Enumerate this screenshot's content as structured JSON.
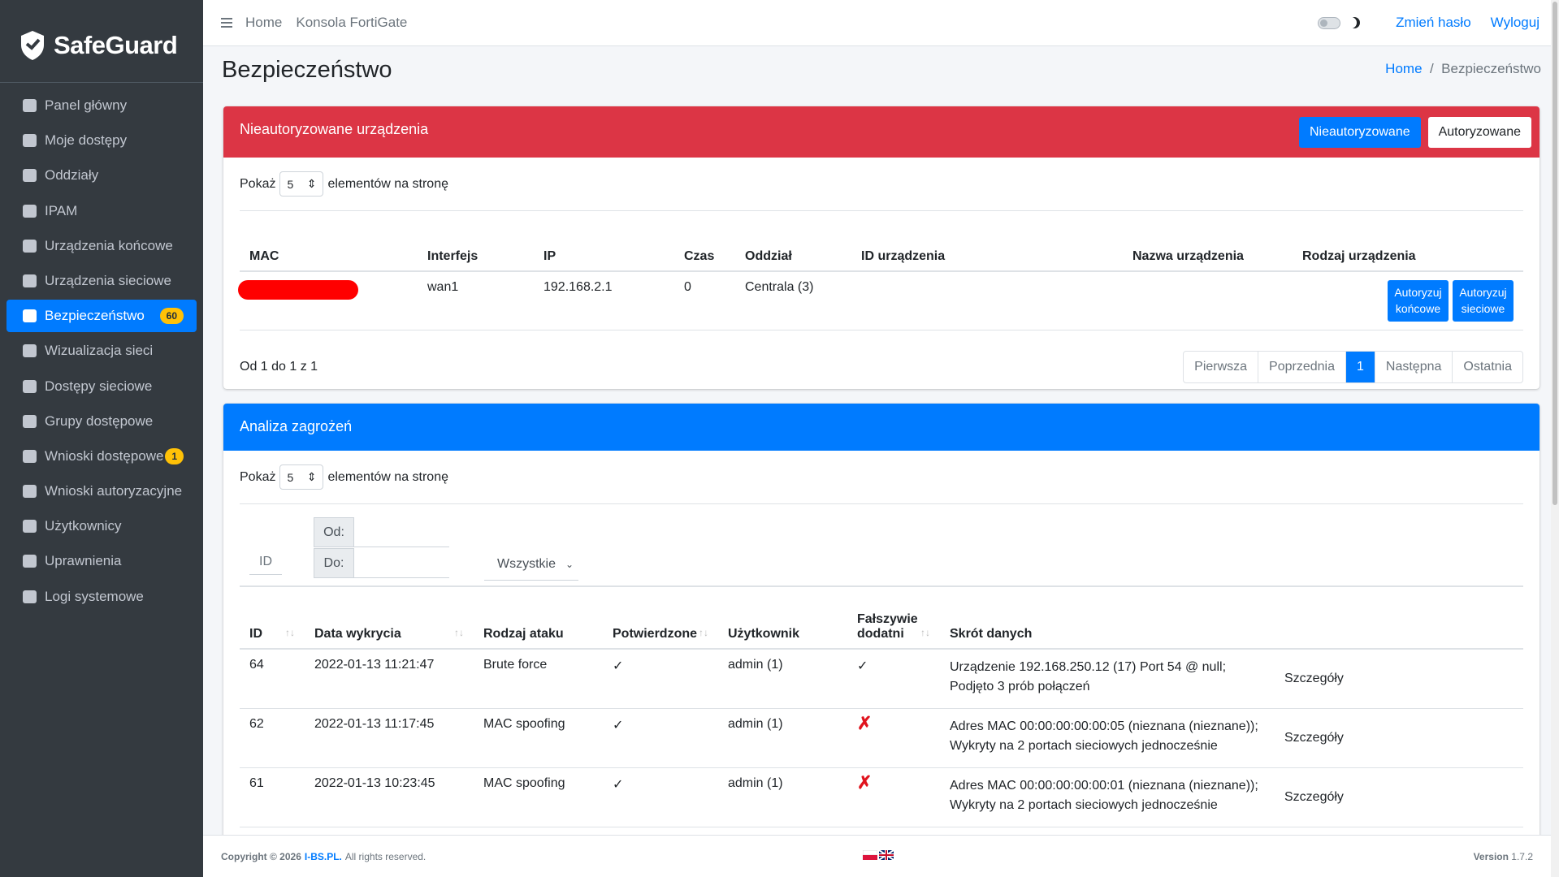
{
  "brand": "SafeGuard",
  "sidebar": {
    "items": [
      {
        "label": "Panel główny"
      },
      {
        "label": "Moje dostępy"
      },
      {
        "label": "Oddziały"
      },
      {
        "label": "IPAM"
      },
      {
        "label": "Urządzenia końcowe"
      },
      {
        "label": "Urządzenia sieciowe"
      },
      {
        "label": "Bezpieczeństwo",
        "badge": "60",
        "active": true
      },
      {
        "label": "Wizualizacja sieci"
      },
      {
        "label": "Dostępy sieciowe"
      },
      {
        "label": "Grupy dostępowe"
      },
      {
        "label": "Wnioski dostępowe",
        "badge": "1"
      },
      {
        "label": "Wnioski autoryzacyjne"
      },
      {
        "label": "Użytkownicy"
      },
      {
        "label": "Uprawnienia"
      },
      {
        "label": "Logi systemowe"
      }
    ]
  },
  "topbar": {
    "links": [
      "Home",
      "Konsola FortiGate"
    ],
    "change_password": "Zmień hasło",
    "logout": "Wyloguj"
  },
  "page": {
    "title": "Bezpieczeństwo",
    "breadcrumb": [
      "Home",
      "Bezpieczeństwo"
    ]
  },
  "unauthorized": {
    "title": "Nieautoryzowane urządzenia",
    "tabs": [
      "Nieautoryzowane",
      "Autoryzowane"
    ],
    "show": "Pokaż",
    "page_size": "5",
    "per_page": "elementów na stronę",
    "columns": [
      "MAC",
      "Interfejs",
      "IP",
      "Czas",
      "Oddział",
      "ID urządzenia",
      "Nazwa urządzenia",
      "Rodzaj urządzenia"
    ],
    "rows": [
      {
        "interface": "wan1",
        "ip": "192.168.2.1",
        "time": "0",
        "branch": "Centrala (3)",
        "actions": [
          "Autoryzuj końcowe",
          "Autoryzuj sieciowe"
        ]
      }
    ],
    "summary": "Od 1 do 1 z 1",
    "pagination": [
      "Pierwsza",
      "Poprzednia",
      "1",
      "Następna",
      "Ostatnia"
    ]
  },
  "threats": {
    "title": "Analiza zagrożeń",
    "show": "Pokaż",
    "page_size": "5",
    "per_page": "elementów na stronę",
    "filters": {
      "id": "ID",
      "from": "Od:",
      "to": "Do:",
      "select": "Wszystkie"
    },
    "columns": [
      "ID",
      "Data wykrycia",
      "Rodzaj ataku",
      "Potwierdzone",
      "Użytkownik",
      "Fałszywie dodatni",
      "Skrót danych"
    ],
    "rows": [
      {
        "id": "64",
        "date": "2022-01-13 11:21:47",
        "type": "Brute force",
        "confirmed": "✓",
        "user": "admin (1)",
        "false_positive": "✓",
        "summary": "Urządzenie 192.168.250.12 (17) Port 54 @ null; Podjęto 3 prób połączeń",
        "details": "Szczegóły"
      },
      {
        "id": "62",
        "date": "2022-01-13 11:17:45",
        "type": "MAC spoofing",
        "confirmed": "✓",
        "user": "admin (1)",
        "false_positive": "✗",
        "summary": "Adres MAC 00:00:00:00:00:05 (nieznana (nieznane)); Wykryty na 2 portach sieciowych jednocześnie",
        "details": "Szczegóły"
      },
      {
        "id": "61",
        "date": "2022-01-13 10:23:45",
        "type": "MAC spoofing",
        "confirmed": "✓",
        "user": "admin (1)",
        "false_positive": "✗",
        "summary": "Adres MAC 00:00:00:00:00:01 (nieznana (nieznane)); Wykryty na 2 portach sieciowych jednocześnie",
        "details": "Szczegóły"
      }
    ]
  },
  "footer": {
    "copyright": "Copyright © 2026",
    "org": "I-BS.PL.",
    "rights": "All rights reserved.",
    "version_label": "Version",
    "version": "1.7.2"
  }
}
